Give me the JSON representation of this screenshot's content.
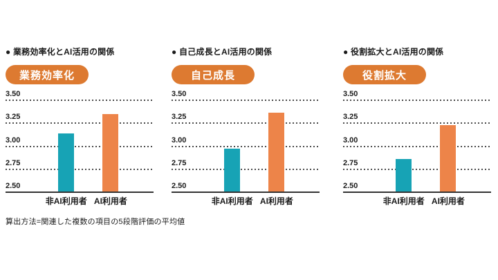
{
  "page": {
    "background": "#ffffff",
    "footnote": "算出方法=関連した複数の項目の5段階評価の平均値"
  },
  "colors": {
    "text": "#1a1a1a",
    "badge_bg": "#dd7a31",
    "badge_text": "#ffffff",
    "non_ai_bar": "#17a3b5",
    "ai_bar": "#ed8449",
    "gridline": "#4a4a4a",
    "axis_line": "#333333"
  },
  "chart_data": [
    {
      "type": "bar",
      "title": "● 業務効率化とAI活用の関係",
      "badge": "業務効率化",
      "categories": [
        "非AI利用者",
        "AI利用者"
      ],
      "values": [
        3.15,
        3.36
      ],
      "ylim": [
        2.5,
        3.5
      ],
      "yticks": [
        2.5,
        2.75,
        3.0,
        3.25,
        3.5
      ],
      "ytick_labels": [
        "2.50",
        "2.75",
        "3.00",
        "3.25",
        "3.50"
      ],
      "grid": "horizontal-dotted",
      "legend": "none",
      "bar_colors": [
        "#17a3b5",
        "#ed8449"
      ]
    },
    {
      "type": "bar",
      "title": "● 自己成長とAI活用の関係",
      "badge": "自己成長",
      "categories": [
        "非AI利用者",
        "AI利用者"
      ],
      "values": [
        2.98,
        3.37
      ],
      "ylim": [
        2.5,
        3.5
      ],
      "yticks": [
        2.5,
        2.75,
        3.0,
        3.25,
        3.5
      ],
      "ytick_labels": [
        "2.50",
        "2.75",
        "3.00",
        "3.25",
        "3.50"
      ],
      "grid": "horizontal-dotted",
      "legend": "none",
      "bar_colors": [
        "#17a3b5",
        "#ed8449"
      ]
    },
    {
      "type": "bar",
      "title": "● 役割拡大とAI活用の関係",
      "badge": "役割拡大",
      "categories": [
        "非AI利用者",
        "AI利用者"
      ],
      "values": [
        2.87,
        3.24
      ],
      "ylim": [
        2.5,
        3.5
      ],
      "yticks": [
        2.5,
        2.75,
        3.0,
        3.25,
        3.5
      ],
      "ytick_labels": [
        "2.50",
        "2.75",
        "3.00",
        "3.25",
        "3.50"
      ],
      "grid": "horizontal-dotted",
      "legend": "none",
      "bar_colors": [
        "#17a3b5",
        "#ed8449"
      ]
    }
  ]
}
